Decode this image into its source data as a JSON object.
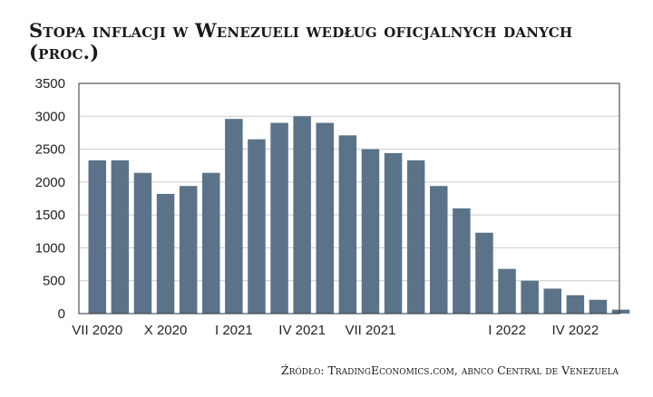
{
  "title": "Stopa inflacji w Wenezueli według oficjalnych danych (proc.)",
  "source": "Źródło: TradingEconomics.com, abnco Central de Venezuela",
  "chart_data": {
    "type": "bar",
    "title": "Stopa inflacji w Wenezueli według oficjalnych danych (proc.)",
    "xlabel": "",
    "ylabel": "",
    "ylim": [
      0,
      3500
    ],
    "yticks": [
      0,
      500,
      1000,
      1500,
      2000,
      2500,
      3000,
      3500
    ],
    "grid": true,
    "bar_color": "#5b7389",
    "categories": [
      "VII 2020",
      "VIII 2020",
      "IX 2020",
      "X 2020",
      "XI 2020",
      "XII 2020",
      "I 2021",
      "II 2021",
      "III 2021",
      "IV 2021",
      "V 2021",
      "VI 2021",
      "VII 2021",
      "VIII 2021",
      "IX 2021",
      "X 2021",
      "XI 2021",
      "XII 2021",
      "I 2022",
      "II 2022",
      "III 2022",
      "IV 2022",
      "V 2022",
      "VI 2022"
    ],
    "xtick_labels": [
      {
        "index": 0,
        "label": "VII 2020"
      },
      {
        "index": 3,
        "label": "X 2020"
      },
      {
        "index": 6,
        "label": "I 2021"
      },
      {
        "index": 9,
        "label": "IV 2021"
      },
      {
        "index": 12,
        "label": "VII 2021"
      },
      {
        "index": 18,
        "label": "I 2022"
      },
      {
        "index": 21,
        "label": "IV 2022"
      }
    ],
    "values": [
      2330,
      2330,
      2140,
      1820,
      1940,
      2140,
      2960,
      2650,
      2900,
      3000,
      2900,
      2710,
      2500,
      2440,
      2330,
      1940,
      1600,
      1230,
      680,
      500,
      380,
      280,
      210,
      60
    ]
  }
}
